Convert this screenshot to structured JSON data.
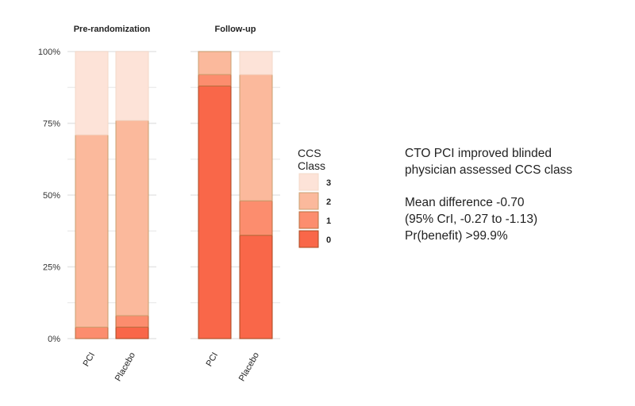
{
  "chart_data": {
    "type": "bar",
    "stacked": true,
    "panels": [
      {
        "title": "Pre-randomization",
        "categories": [
          "PCI",
          "Placebo"
        ],
        "series": [
          {
            "name": "0",
            "values": [
              0,
              4
            ]
          },
          {
            "name": "1",
            "values": [
              4,
              4
            ]
          },
          {
            "name": "2",
            "values": [
              67,
              68
            ]
          },
          {
            "name": "3",
            "values": [
              29,
              24
            ]
          }
        ]
      },
      {
        "title": "Follow-up",
        "categories": [
          "PCI",
          "Placebo"
        ],
        "series": [
          {
            "name": "0",
            "values": [
              88,
              36
            ]
          },
          {
            "name": "1",
            "values": [
              4,
              12
            ]
          },
          {
            "name": "2",
            "values": [
              8,
              44
            ]
          },
          {
            "name": "3",
            "values": [
              0,
              8
            ]
          }
        ]
      }
    ],
    "yticks": [
      "0%",
      "25%",
      "50%",
      "75%",
      "100%"
    ],
    "ylim": [
      0,
      100
    ],
    "grid": true,
    "legend": {
      "title_line1": "CCS",
      "title_line2": "Class",
      "entries": [
        "3",
        "2",
        "1",
        "0"
      ],
      "placement": "right"
    },
    "colors": {
      "0": "#f96749",
      "1": "#fc8d6e",
      "2": "#fbb99c",
      "3": "#fde3d8"
    }
  },
  "annotation": {
    "line1": "CTO PCI improved blinded",
    "line2": "physician assessed CCS class",
    "line3": "Mean difference -0.70",
    "line4": "(95% CrI, -0.27 to -1.13)",
    "line5": "Pr(benefit) >99.9%"
  }
}
